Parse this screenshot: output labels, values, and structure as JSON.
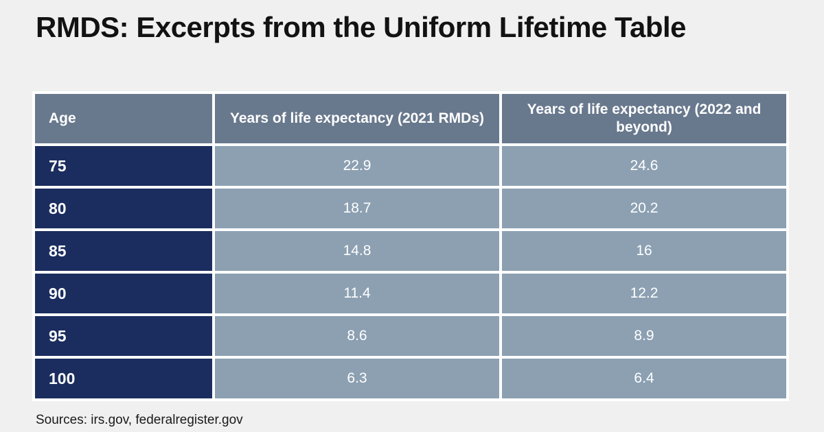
{
  "page": {
    "title": "RMDS: Excerpts from the Uniform Lifetime Table",
    "source_note": "Sources: irs.gov, federalregister.gov"
  },
  "table": {
    "columns": [
      {
        "label": "Age"
      },
      {
        "label": "Years of life expectancy (2021 RMDs)"
      },
      {
        "label": "Years of life expectancy (2022 and beyond)"
      }
    ],
    "rows": [
      {
        "age": "75",
        "y2021": "22.9",
        "y2022": "24.6"
      },
      {
        "age": "80",
        "y2021": "18.7",
        "y2022": "20.2"
      },
      {
        "age": "85",
        "y2021": "14.8",
        "y2022": "16"
      },
      {
        "age": "90",
        "y2021": "11.4",
        "y2022": "12.2"
      },
      {
        "age": "95",
        "y2021": "8.6",
        "y2022": "8.9"
      },
      {
        "age": "100",
        "y2021": "6.3",
        "y2022": "6.4"
      }
    ]
  },
  "colors": {
    "page_bg": "#eff0ef",
    "panel_bg": "#ffffff",
    "header_bg": "#68788d",
    "age_column_bg": "#1b2d5f",
    "value_cell_bg": "#8ca0b2",
    "cell_text": "#ffffff",
    "title_text": "#121212"
  },
  "chart_data": {
    "type": "table",
    "title": "RMDS: Excerpts from the Uniform Lifetime Table",
    "columns": [
      "Age",
      "Years of life expectancy (2021 RMDs)",
      "Years of life expectancy (2022 and beyond)"
    ],
    "rows": [
      [
        75,
        22.9,
        24.6
      ],
      [
        80,
        18.7,
        20.2
      ],
      [
        85,
        14.8,
        16
      ],
      [
        90,
        11.4,
        12.2
      ],
      [
        95,
        8.6,
        8.9
      ],
      [
        100,
        6.3,
        6.4
      ]
    ],
    "source": "Sources: irs.gov, federalregister.gov"
  }
}
